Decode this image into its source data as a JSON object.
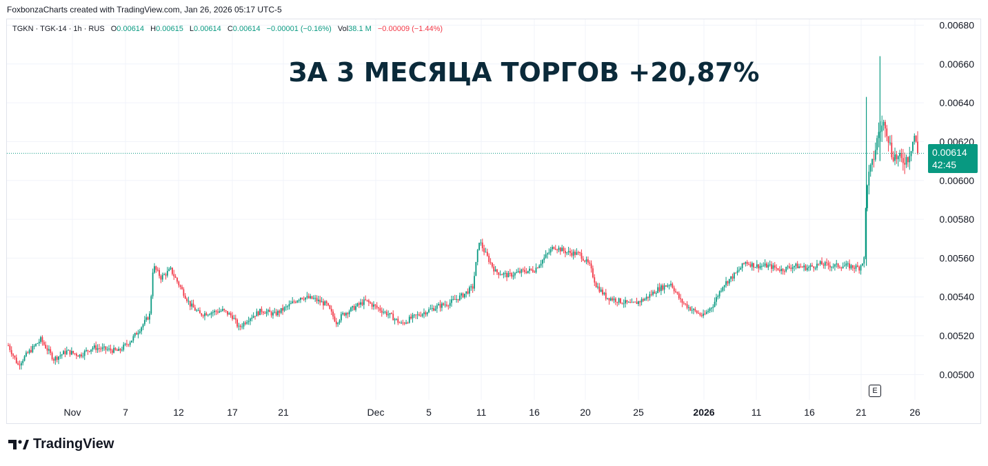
{
  "header": {
    "text": "FoxbonzaCharts created with TradingView.com, Jan 26, 2026 05:17 UTC-5"
  },
  "legend": {
    "symbol": "TGKN · TGK-14 · 1h · RUS",
    "o_label": "O",
    "o_val": "0.00614",
    "h_label": "H",
    "h_val": "0.00615",
    "l_label": "L",
    "l_val": "0.00614",
    "c_label": "C",
    "c_val": "0.00614",
    "change": "−0.00001 (−0.16%)",
    "vol_label": "Vol",
    "vol_val": "38.1 M",
    "vol_change": "−0.00009 (−1.44%)"
  },
  "annotation": "ЗА 3 МЕСЯЦА ТОРГОВ +20,87%",
  "price_tag": {
    "price": "0.00614",
    "countdown": "42:45"
  },
  "event_marker": "E",
  "brand": "TradingView",
  "colors": {
    "up": "#089981",
    "down": "#f23645",
    "grid": "#f0f3fa",
    "text": "#131722",
    "annotation": "#0b2a3a"
  },
  "chart_data": {
    "type": "candlestick",
    "ylim": [
      0.00487,
      0.00683
    ],
    "y_ticks": [
      "0.00680",
      "0.00660",
      "0.00640",
      "0.00620",
      "0.00600",
      "0.00580",
      "0.00560",
      "0.00540",
      "0.00520",
      "0.00500"
    ],
    "x_ticks": [
      "Nov",
      "7",
      "12",
      "17",
      "21",
      "Dec",
      "5",
      "11",
      "16",
      "20",
      "25",
      "2026",
      "11",
      "16",
      "21",
      "26"
    ],
    "last_price": 0.00614,
    "close_path": [
      [
        0,
        0.00515
      ],
      [
        1.5,
        0.00505
      ],
      [
        3,
        0.00511
      ],
      [
        5,
        0.00518
      ],
      [
        7,
        0.00508
      ],
      [
        9,
        0.00512
      ],
      [
        11,
        0.0051
      ],
      [
        13,
        0.00514
      ],
      [
        15,
        0.00513
      ],
      [
        17,
        0.00512
      ],
      [
        19,
        0.00518
      ],
      [
        21,
        0.00527
      ],
      [
        21.8,
        0.00531
      ],
      [
        22.3,
        0.00556
      ],
      [
        23.5,
        0.0055
      ],
      [
        25,
        0.00554
      ],
      [
        26.5,
        0.00545
      ],
      [
        28,
        0.00536
      ],
      [
        29.5,
        0.00531
      ],
      [
        31,
        0.00532
      ],
      [
        33,
        0.00533
      ],
      [
        34.5,
        0.0053
      ],
      [
        35.5,
        0.00524
      ],
      [
        37,
        0.00529
      ],
      [
        39,
        0.00533
      ],
      [
        41,
        0.00531
      ],
      [
        43,
        0.00535
      ],
      [
        45,
        0.0054
      ],
      [
        47,
        0.00539
      ],
      [
        49,
        0.00536
      ],
      [
        50.5,
        0.00527
      ],
      [
        51.5,
        0.00531
      ],
      [
        53,
        0.00534
      ],
      [
        55,
        0.00538
      ],
      [
        57,
        0.00534
      ],
      [
        59,
        0.0053
      ],
      [
        60.5,
        0.00526
      ],
      [
        62,
        0.00529
      ],
      [
        64,
        0.00532
      ],
      [
        66,
        0.00535
      ],
      [
        68,
        0.00537
      ],
      [
        70,
        0.00541
      ],
      [
        71.5,
        0.00545
      ],
      [
        72.5,
        0.00569
      ],
      [
        73.5,
        0.00562
      ],
      [
        75,
        0.00553
      ],
      [
        77,
        0.00551
      ],
      [
        79,
        0.00553
      ],
      [
        81,
        0.00554
      ],
      [
        82.5,
        0.0056
      ],
      [
        84,
        0.00566
      ],
      [
        86,
        0.00563
      ],
      [
        88,
        0.00562
      ],
      [
        89.5,
        0.00556
      ],
      [
        90.5,
        0.00546
      ],
      [
        92,
        0.0054
      ],
      [
        94,
        0.00538
      ],
      [
        96,
        0.00536
      ],
      [
        98,
        0.00539
      ],
      [
        100,
        0.00544
      ],
      [
        102,
        0.00547
      ],
      [
        103.5,
        0.00538
      ],
      [
        105,
        0.00534
      ],
      [
        107,
        0.0053
      ],
      [
        108.5,
        0.00536
      ],
      [
        110,
        0.00546
      ],
      [
        112,
        0.00552
      ],
      [
        113.5,
        0.00558
      ],
      [
        115,
        0.00556
      ],
      [
        117,
        0.00556
      ],
      [
        119,
        0.00554
      ],
      [
        121,
        0.00556
      ],
      [
        123,
        0.00555
      ],
      [
        125,
        0.00557
      ],
      [
        127,
        0.00556
      ],
      [
        129,
        0.00556
      ],
      [
        131,
        0.00555
      ],
      [
        131.8,
        0.0056
      ],
      [
        132.1,
        0.00598
      ],
      [
        133,
        0.00608
      ],
      [
        134,
        0.00625
      ],
      [
        135,
        0.0063
      ],
      [
        136,
        0.00614
      ],
      [
        137.5,
        0.0061
      ],
      [
        138.5,
        0.00612
      ],
      [
        139.5,
        0.00623
      ],
      [
        140,
        0.00614
      ]
    ]
  }
}
